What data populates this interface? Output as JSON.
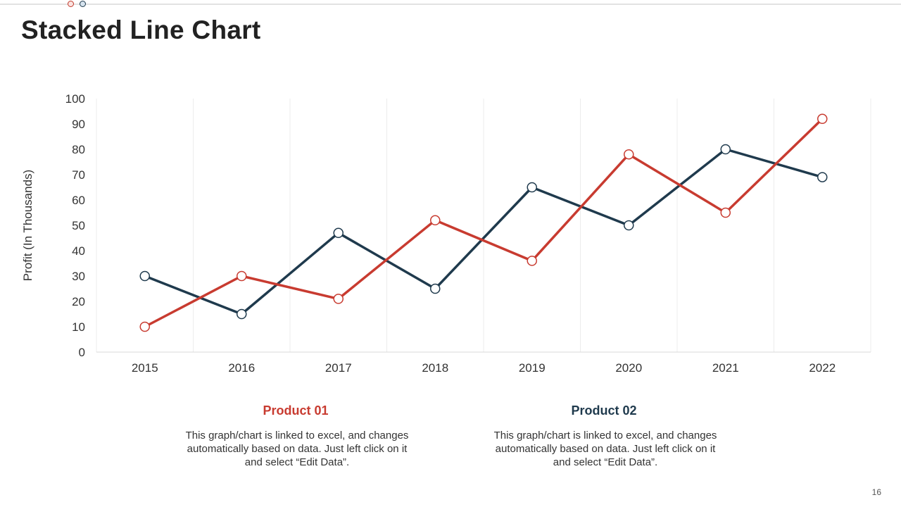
{
  "slide": {
    "title": "Stacked Line Chart",
    "page_number": "16"
  },
  "chart_data": {
    "type": "line",
    "title": "",
    "xlabel": "",
    "ylabel": "Profit (In Thousands)",
    "categories": [
      "2015",
      "2016",
      "2017",
      "2018",
      "2019",
      "2020",
      "2021",
      "2022"
    ],
    "yticks": [
      "0",
      "10",
      "20",
      "30",
      "40",
      "50",
      "60",
      "70",
      "80",
      "90",
      "100"
    ],
    "ylim": [
      0,
      100
    ],
    "grid": "vertical",
    "series": [
      {
        "name": "Product 02",
        "color": "#1f3a4d",
        "values": [
          30,
          15,
          47,
          25,
          65,
          50,
          80,
          69
        ]
      },
      {
        "name": "Product 01",
        "color": "#c83b30",
        "values": [
          10,
          30,
          21,
          52,
          36,
          78,
          55,
          92
        ]
      }
    ]
  },
  "legend": {
    "product1": {
      "label": "Product 01",
      "color": "#c83b30",
      "description": "This graph/chart is linked to excel, and changes automatically based on data. Just left click on it and select “Edit Data”."
    },
    "product2": {
      "label": "Product 02",
      "color": "#1f3a4d",
      "description": "This graph/chart is linked to excel, and changes automatically based on data. Just left click on it and select “Edit Data”."
    }
  }
}
